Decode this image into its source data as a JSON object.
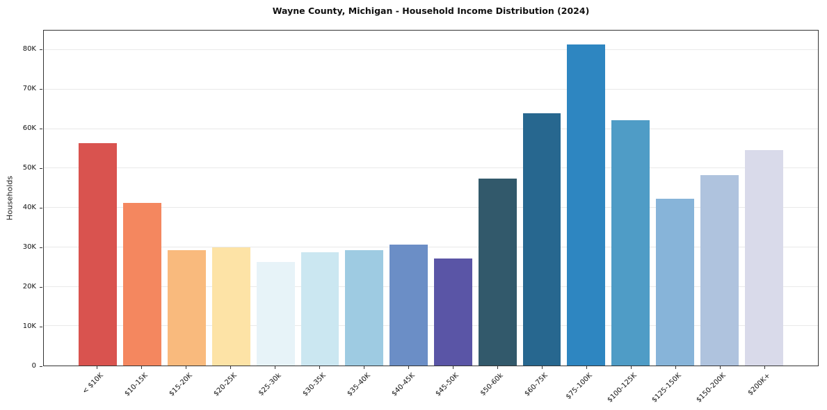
{
  "chart_data": {
    "type": "bar",
    "title": "Wayne County, Michigan - Household Income Distribution (2024)",
    "xlabel": "",
    "ylabel": "Households",
    "categories": [
      "< $10K",
      "$10-15K",
      "$15-20K",
      "$20-25K",
      "$25-30k",
      "$30-35K",
      "$35-40K",
      "$40-45K",
      "$45-50K",
      "$50-60k",
      "$60-75K",
      "$75-100K",
      "$100-125K",
      "$125-150K",
      "$150-200K",
      "$200K+"
    ],
    "values_households": [
      56500,
      41300,
      29200,
      30000,
      26300,
      28700,
      29200,
      30700,
      27200,
      47400,
      64100,
      81500,
      62200,
      42400,
      48300,
      54600
    ],
    "bar_colors": [
      "#d9534f",
      "#f4875f",
      "#f9ba7d",
      "#fde3a6",
      "#e7f3f8",
      "#cbe7f1",
      "#9ecbe2",
      "#6b8ec6",
      "#5a55a6",
      "#32596b",
      "#27678f",
      "#2e86c1",
      "#4f9cc6",
      "#87b4d9",
      "#afc3de",
      "#d9daea"
    ],
    "ylim": [
      0,
      85000
    ],
    "ytick_values": [
      0,
      10000,
      20000,
      30000,
      40000,
      50000,
      60000,
      70000,
      80000
    ],
    "ytick_labels": [
      "0",
      "10K",
      "20K",
      "30K",
      "40K",
      "50K",
      "60K",
      "70K",
      "80K"
    ],
    "grid": true,
    "legend": false
  }
}
